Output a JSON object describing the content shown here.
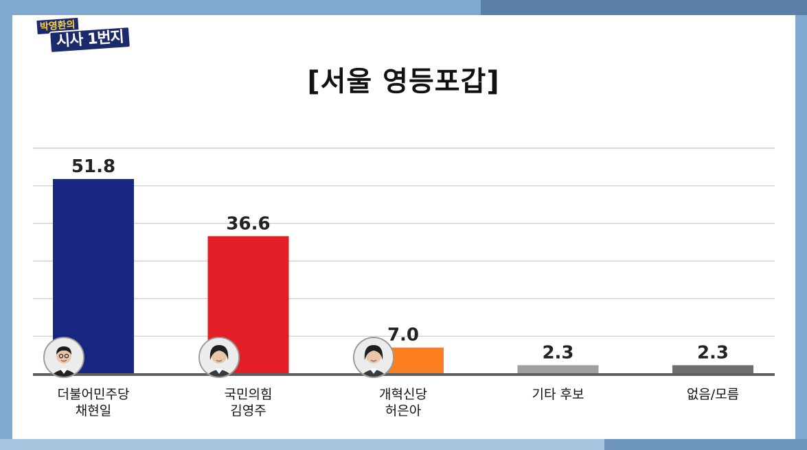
{
  "logo": {
    "line1": "박영환의",
    "line2": "시사 1번지"
  },
  "chart_data": {
    "type": "bar",
    "title": "[서울 영등포갑]",
    "categories": [
      [
        "더불어민주당",
        "채현일"
      ],
      [
        "국민의힘",
        "김영주"
      ],
      [
        "개혁신당",
        "허은아"
      ],
      [
        "기타 후보"
      ],
      [
        "없음/모름"
      ]
    ],
    "values": [
      51.8,
      36.6,
      7.0,
      2.3,
      2.3
    ],
    "value_labels": [
      "51.8",
      "36.6",
      "7.0",
      "2.3",
      "2.3"
    ],
    "colors": [
      "#172680",
      "#e31e26",
      "#fb7e21",
      "#a0a0a0",
      "#6e6e6e"
    ],
    "ylim": [
      0,
      60
    ],
    "grid": true,
    "xlabel": "",
    "ylabel": ""
  },
  "avatars": [
    {
      "name": "man-portrait-icon",
      "bar": 0
    },
    {
      "name": "woman-portrait-icon",
      "bar": 1
    },
    {
      "name": "woman-portrait-icon",
      "bar": 2
    }
  ]
}
